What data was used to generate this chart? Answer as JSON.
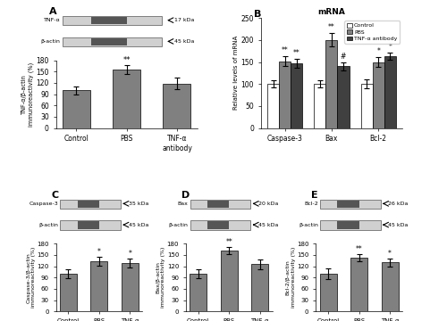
{
  "panel_A": {
    "bars": {
      "categories": [
        "Control",
        "PBS",
        "TNF-α\nantibody"
      ],
      "values": [
        100,
        155,
        118
      ],
      "errors": [
        10,
        12,
        15
      ],
      "color": "#808080"
    },
    "ylabel": "TNF-α/β-actin\nimmunoreactivity (%)",
    "ylim": [
      0,
      180
    ],
    "yticks": [
      0,
      30,
      60,
      90,
      120,
      150,
      180
    ],
    "annotations": [
      [
        "",
        "**",
        ""
      ],
      [
        "",
        "",
        ""
      ]
    ],
    "blot_labels": [
      "TNF-α",
      "β-actin"
    ],
    "blot_kda": [
      "17 kDa",
      "45 kDa"
    ],
    "panel_label": "A"
  },
  "panel_B": {
    "groups": [
      "Caspase-3",
      "Bax",
      "Bcl-2"
    ],
    "control_vals": [
      101,
      101,
      100
    ],
    "pbs_vals": [
      152,
      200,
      150
    ],
    "antibody_vals": [
      147,
      140,
      163
    ],
    "control_errs": [
      8,
      8,
      10
    ],
    "pbs_errs": [
      12,
      15,
      12
    ],
    "antibody_errs": [
      10,
      10,
      8
    ],
    "control_color": "#ffffff",
    "pbs_color": "#808080",
    "antibody_color": "#404040",
    "ylabel": "Relative levels of mRNA",
    "title": "mRNA",
    "ylim": [
      0,
      250
    ],
    "yticks": [
      0,
      50,
      100,
      150,
      200,
      250
    ],
    "pbs_annotations": [
      "**",
      "**",
      "*"
    ],
    "antibody_annotations": [
      "**",
      "#",
      "*"
    ],
    "panel_label": "B"
  },
  "panel_C": {
    "bars": {
      "categories": [
        "Control",
        "PBS",
        "TNF-α\nantibody"
      ],
      "values": [
        100,
        133,
        128
      ],
      "errors": [
        12,
        12,
        12
      ],
      "color": "#808080"
    },
    "ylabel": "Caspase-3/β-actin\nimmunoreactivity (%)",
    "ylim": [
      0,
      180
    ],
    "yticks": [
      0,
      30,
      60,
      90,
      120,
      150,
      180
    ],
    "annotations": [
      "",
      "*",
      "*"
    ],
    "blot_labels": [
      "Caspase-3",
      "β-actin"
    ],
    "blot_kda": [
      "35 kDa",
      "45 kDa"
    ],
    "panel_label": "C"
  },
  "panel_D": {
    "bars": {
      "categories": [
        "Control",
        "PBS",
        "TNF-α\nantibody"
      ],
      "values": [
        100,
        162,
        125
      ],
      "errors": [
        12,
        10,
        12
      ],
      "color": "#808080"
    },
    "ylabel": "Bax/β-actin\nimmunoreactivity (%)",
    "ylim": [
      0,
      180
    ],
    "yticks": [
      0,
      30,
      60,
      90,
      120,
      150,
      180
    ],
    "annotations": [
      "",
      "**",
      ""
    ],
    "blot_labels": [
      "Bax",
      "β-actin"
    ],
    "blot_kda": [
      "20 kDa",
      "45 kDa"
    ],
    "panel_label": "D"
  },
  "panel_E": {
    "bars": {
      "categories": [
        "Control",
        "PBS",
        "TNF-α\nantibody"
      ],
      "values": [
        100,
        143,
        130
      ],
      "errors": [
        15,
        10,
        10
      ],
      "color": "#808080"
    },
    "ylabel": "Bcl-2/β-actin\nimmunoreactivity (%)",
    "ylim": [
      0,
      180
    ],
    "yticks": [
      0,
      30,
      60,
      90,
      120,
      150,
      180
    ],
    "annotations": [
      "",
      "**",
      "*"
    ],
    "blot_labels": [
      "Bcl-2",
      "β-actin"
    ],
    "blot_kda": [
      "26 kDa",
      "45 kDa"
    ],
    "panel_label": "E"
  },
  "bar_color": "#808080",
  "background_color": "#ffffff"
}
